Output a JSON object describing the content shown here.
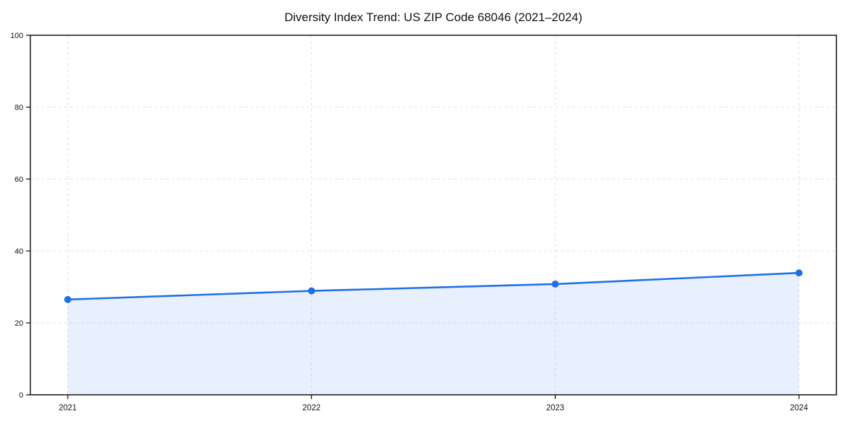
{
  "chart_data": {
    "type": "line",
    "title": "Diversity Index Trend: US ZIP Code 68046 (2021–2024)",
    "x": [
      "2021",
      "2022",
      "2023",
      "2024"
    ],
    "series": [
      {
        "name": "Diversity Index",
        "values": [
          26.5,
          28.9,
          30.8,
          33.9
        ]
      }
    ],
    "xlabel": "",
    "ylabel": "",
    "ylim": [
      0,
      100
    ],
    "yticks": [
      0,
      20,
      40,
      60,
      80,
      100
    ],
    "grid": true,
    "grid_style": "dashed",
    "legend": "none",
    "area_fill": true,
    "marker": "circle",
    "colors": {
      "line": "#1f6fe8",
      "fill": "#1f6fe8",
      "fill_opacity": 0.1,
      "grid": "#e2e2e2",
      "axis": "#000000",
      "text": "#111111",
      "background": "#ffffff"
    }
  }
}
